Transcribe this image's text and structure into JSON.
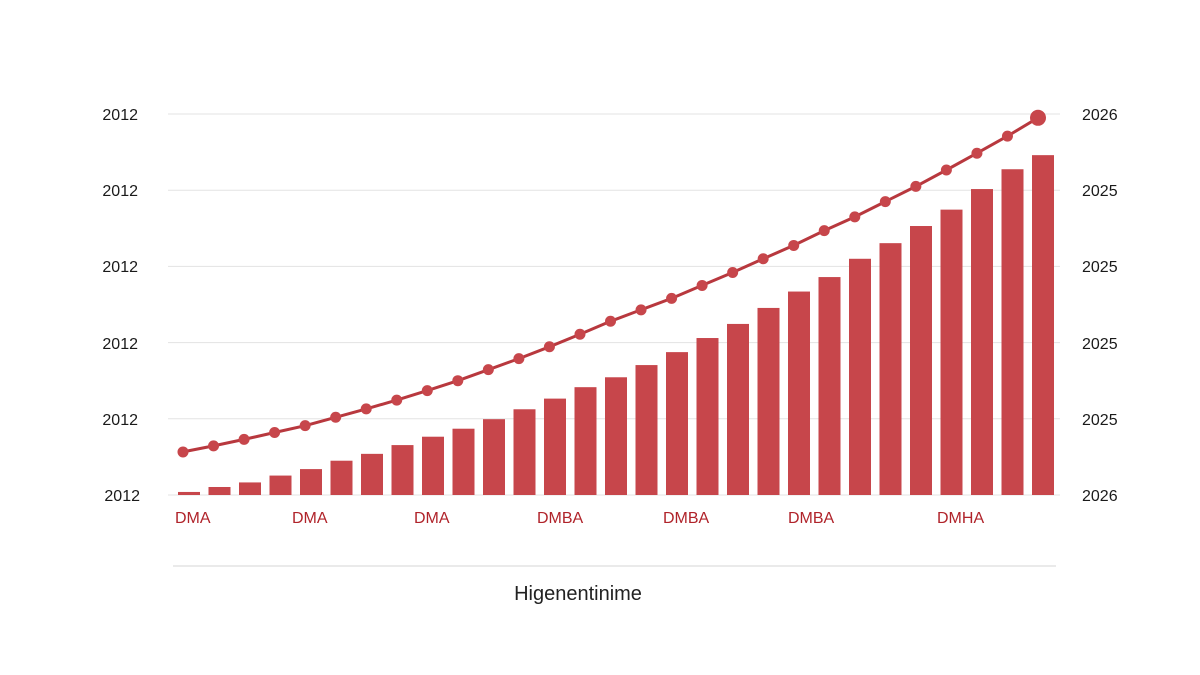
{
  "chart_data": {
    "type": "bar",
    "title": "",
    "xlabel": "Higenentinime",
    "ylabel": "",
    "left_ticks": [
      "2012",
      "2012",
      "2012",
      "2012",
      "2012",
      "2012"
    ],
    "right_ticks": [
      "2026",
      "2025",
      "2025",
      "2025",
      "2025",
      "2026"
    ],
    "x_ticks": [
      "DMA",
      "DMA",
      "DMA",
      "DMBA",
      "DMBA",
      "DMBA",
      "DMHA"
    ],
    "ylim": [
      0,
      100
    ],
    "grid": true,
    "legend": "none",
    "series": [
      {
        "type": "bar",
        "values": [
          0.8,
          2.1,
          3.3,
          5.1,
          6.8,
          9.0,
          10.8,
          13.1,
          15.3,
          17.4,
          19.9,
          22.5,
          25.3,
          28.3,
          30.9,
          34.1,
          37.5,
          41.2,
          44.9,
          49.1,
          53.4,
          57.2,
          62.0,
          66.1,
          70.6,
          74.9,
          80.3,
          85.5,
          89.2
        ]
      },
      {
        "type": "line",
        "values": [
          11.3,
          12.9,
          14.6,
          16.4,
          18.2,
          20.4,
          22.6,
          24.9,
          27.4,
          30.0,
          32.9,
          35.8,
          38.9,
          42.2,
          45.6,
          48.6,
          51.6,
          55.0,
          58.4,
          62.0,
          65.5,
          69.4,
          73.0,
          77.0,
          81.0,
          85.3,
          89.7,
          94.2,
          99.0
        ]
      }
    ]
  },
  "colors": {
    "bar": "#c7464b",
    "line": "#c7464b",
    "line_stroke": "#b8383e",
    "grid": "#e3e3e3",
    "x_tick": "#b0232a"
  }
}
